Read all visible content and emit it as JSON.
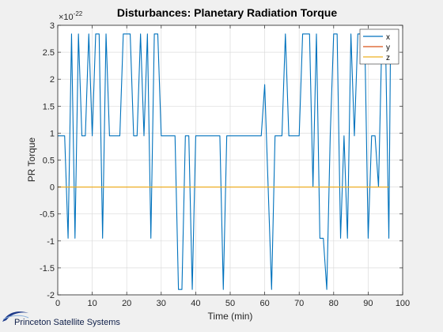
{
  "chart_data": {
    "type": "line",
    "title": "Disturbances: Planetary Radiation Torque",
    "xlabel": "Time (min)",
    "ylabel": "PR Torque",
    "y_exponent": "×10",
    "y_exponent_power": "-22",
    "xlim": [
      0,
      100
    ],
    "ylim": [
      -2,
      3
    ],
    "xticks": [
      "0",
      "10",
      "20",
      "30",
      "40",
      "50",
      "60",
      "70",
      "80",
      "90",
      "100"
    ],
    "yticks": [
      "-2",
      "-1.5",
      "-1",
      "-0.5",
      "0",
      "0.5",
      "1",
      "1.5",
      "2",
      "2.5",
      "3"
    ],
    "grid": true,
    "legend_position": "top-right",
    "series": [
      {
        "name": "x",
        "color": "#0072bd",
        "points": [
          [
            0,
            0.95
          ],
          [
            2,
            0.95
          ],
          [
            3,
            -0.95
          ],
          [
            4,
            2.84
          ],
          [
            5,
            -0.95
          ],
          [
            6,
            2.84
          ],
          [
            7,
            0.95
          ],
          [
            8,
            0.95
          ],
          [
            9,
            2.84
          ],
          [
            10,
            0.95
          ],
          [
            11,
            2.84
          ],
          [
            12,
            2.84
          ],
          [
            13,
            -0.95
          ],
          [
            14,
            2.84
          ],
          [
            15,
            0.95
          ],
          [
            18,
            0.95
          ],
          [
            19,
            2.84
          ],
          [
            21,
            2.84
          ],
          [
            22,
            0.95
          ],
          [
            23,
            0.95
          ],
          [
            24,
            2.84
          ],
          [
            25,
            0.95
          ],
          [
            26,
            2.84
          ],
          [
            27,
            -0.95
          ],
          [
            28,
            2.84
          ],
          [
            29,
            2.84
          ],
          [
            30,
            0.95
          ],
          [
            34,
            0.95
          ],
          [
            35,
            -1.9
          ],
          [
            36,
            -1.9
          ],
          [
            37,
            0.95
          ],
          [
            38,
            0.95
          ],
          [
            39,
            -1.9
          ],
          [
            40,
            0.95
          ],
          [
            47,
            0.95
          ],
          [
            48,
            -1.9
          ],
          [
            49,
            0.95
          ],
          [
            59,
            0.95
          ],
          [
            60,
            1.9
          ],
          [
            62,
            -1.9
          ],
          [
            63,
            0.95
          ],
          [
            65,
            0.95
          ],
          [
            66,
            2.84
          ],
          [
            67,
            0.95
          ],
          [
            68,
            0.95
          ],
          [
            69,
            0.95
          ],
          [
            70,
            0.95
          ],
          [
            71,
            2.84
          ],
          [
            73,
            2.84
          ],
          [
            74,
            0.0
          ],
          [
            75,
            2.84
          ],
          [
            76,
            -0.95
          ],
          [
            77,
            -0.95
          ],
          [
            78,
            -1.9
          ],
          [
            79,
            0.95
          ],
          [
            80,
            2.84
          ],
          [
            81,
            2.84
          ],
          [
            82,
            -0.95
          ],
          [
            83,
            0.95
          ],
          [
            84,
            -0.95
          ],
          [
            85,
            2.84
          ],
          [
            86,
            0.95
          ],
          [
            87,
            2.84
          ],
          [
            88,
            2.84
          ],
          [
            89,
            2.84
          ],
          [
            90,
            -0.95
          ],
          [
            91,
            0.95
          ],
          [
            92,
            0.95
          ],
          [
            93,
            0.0
          ],
          [
            94,
            2.84
          ],
          [
            95,
            2.84
          ],
          [
            96,
            -0.95
          ],
          [
            96.5,
            2.84
          ]
        ]
      },
      {
        "name": "y",
        "color": "#d95319",
        "points": [
          [
            0,
            0
          ],
          [
            96,
            0
          ]
        ]
      },
      {
        "name": "z",
        "color": "#edb120",
        "points": [
          [
            0,
            0
          ],
          [
            96,
            0
          ]
        ]
      }
    ]
  },
  "footer": {
    "logo_text": "Princeton Satellite Systems"
  }
}
